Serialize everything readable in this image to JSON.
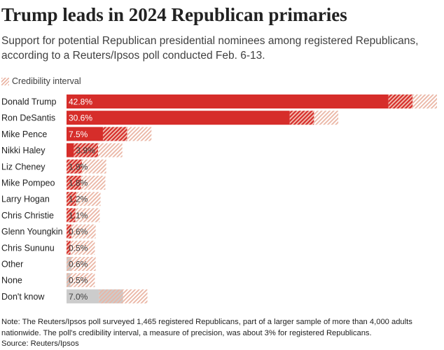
{
  "title": "Trump leads in 2024 Republican primaries",
  "subtitle": "Support for potential Republican presidential nominees among registered Republicans, according to a Reuters/Ipsos poll conducted Feb. 6-13.",
  "legend": {
    "label": "Credibility interval"
  },
  "colors": {
    "bar": "#d62d2a",
    "bar_muted": "#cccccc",
    "interval_light": "#eab5a4",
    "interval_dark": "#cf3b34"
  },
  "chart_data": {
    "type": "bar",
    "orientation": "horizontal",
    "categories": [
      "Donald Trump",
      "Ron DeSantis",
      "Mike Pence",
      "Nikki Haley",
      "Liz Cheney",
      "Mike Pompeo",
      "Larry Hogan",
      "Chris Christie",
      "Glenn Youngkin",
      "Chris Sununu",
      "Other",
      "None",
      "Don't know"
    ],
    "values": [
      42.8,
      30.6,
      7.5,
      3.9,
      1.9,
      1.8,
      1.2,
      1.1,
      0.6,
      0.5,
      0.6,
      0.5,
      7.0
    ],
    "labels": [
      "42.8%",
      "30.6%",
      "7.5%",
      "3.9%",
      "1.9%",
      "1.8%",
      "1.2%",
      "1.1%",
      "0.6%",
      "0.5%",
      "0.6%",
      "0.5%",
      "7.0%"
    ],
    "credibility_interval": 3,
    "muted_categories": [
      "Other",
      "None",
      "Don't know"
    ],
    "xlim": [
      0,
      46
    ],
    "legend": "Credibility interval",
    "grid": false
  },
  "footer": {
    "note": "Note: The Reuters/Ipsos poll surveyed 1,465 registered Republicans, part of a larger sample of more than 4,000 adults nationwide. The poll's credibility interval, a measure of precision, was about 3% for registered Republicans.",
    "source": "Source: Reuters/Ipsos"
  }
}
